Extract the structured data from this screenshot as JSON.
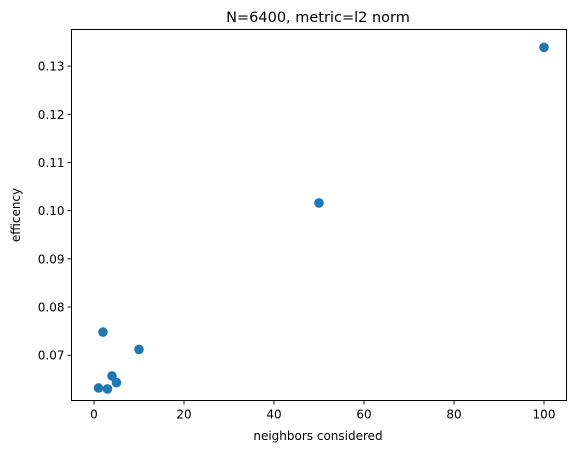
{
  "chart_data": {
    "type": "scatter",
    "title": "N=6400, metric=l2 norm",
    "xlabel": "neighbors considered",
    "ylabel": "efficency",
    "xlim": [
      -5.0,
      105.0
    ],
    "ylim": [
      0.0606,
      0.1376
    ],
    "xticks": [
      0,
      20,
      40,
      60,
      80,
      100
    ],
    "yticks": [
      0.06,
      0.07,
      0.08,
      0.09,
      0.1,
      0.11,
      0.12,
      0.13
    ],
    "ytick_labels": [
      "0.06",
      "0.07",
      "0.08",
      "0.09",
      "0.10",
      "0.11",
      "0.12",
      "0.13"
    ],
    "grid": false,
    "series": [
      {
        "color": "#1f77b4",
        "points": [
          {
            "x": 1,
            "y": 0.0632
          },
          {
            "x": 2,
            "y": 0.0748
          },
          {
            "x": 3,
            "y": 0.063
          },
          {
            "x": 4,
            "y": 0.0657
          },
          {
            "x": 5,
            "y": 0.0643
          },
          {
            "x": 10,
            "y": 0.0712
          },
          {
            "x": 50,
            "y": 0.1016
          },
          {
            "x": 100,
            "y": 0.1339
          }
        ]
      }
    ]
  }
}
